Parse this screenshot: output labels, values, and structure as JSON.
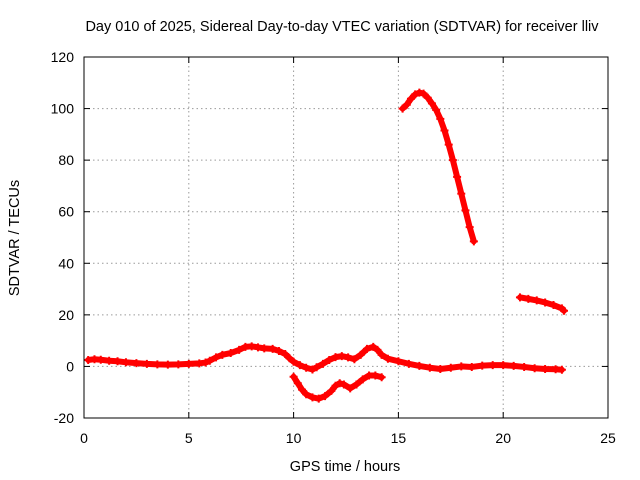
{
  "chart_data": {
    "type": "scatter",
    "title": "Day 010 of 2025, Sidereal Day-to-day VTEC variation (SDTVAR) for receiver lliv",
    "xlabel": "GPS time / hours",
    "ylabel": "SDTVAR / TECUs",
    "xlim": [
      0,
      25
    ],
    "ylim": [
      -20,
      120
    ],
    "x_ticks": [
      0,
      5,
      10,
      15,
      20,
      25
    ],
    "y_ticks": [
      -20,
      0,
      20,
      40,
      60,
      80,
      100,
      120
    ],
    "x_tick_labels": [
      "0",
      "5",
      "10",
      "15",
      "20",
      "25"
    ],
    "y_tick_labels": [
      "-20",
      "0",
      "20",
      "40",
      "60",
      "80",
      "100",
      "120"
    ],
    "grid": true,
    "legend": "none",
    "marker": "plus",
    "color": "#ff0000",
    "series": [
      {
        "points": [
          [
            0.2,
            2.5
          ],
          [
            0.5,
            2.8
          ],
          [
            0.8,
            2.6
          ],
          [
            1.2,
            2.2
          ],
          [
            1.6,
            2.0
          ],
          [
            2.0,
            1.6
          ],
          [
            2.5,
            1.3
          ],
          [
            3.0,
            1.0
          ],
          [
            3.5,
            0.8
          ],
          [
            4.0,
            0.7
          ],
          [
            4.5,
            0.8
          ],
          [
            5.0,
            1.0
          ],
          [
            5.5,
            1.2
          ],
          [
            5.8,
            1.5
          ],
          [
            6.0,
            2.2
          ],
          [
            6.3,
            3.5
          ],
          [
            6.6,
            4.5
          ],
          [
            7.0,
            5.2
          ],
          [
            7.4,
            6.4
          ],
          [
            7.7,
            7.6
          ],
          [
            8.0,
            7.8
          ],
          [
            8.3,
            7.4
          ],
          [
            8.6,
            7.0
          ],
          [
            9.0,
            6.8
          ],
          [
            9.3,
            6.0
          ],
          [
            9.6,
            4.8
          ],
          [
            9.8,
            3.2
          ],
          [
            10.0,
            1.8
          ],
          [
            10.3,
            0.5
          ],
          [
            10.6,
            -0.5
          ],
          [
            10.9,
            -1.2
          ],
          [
            11.1,
            -0.3
          ],
          [
            11.4,
            1.0
          ],
          [
            11.7,
            2.5
          ],
          [
            12.0,
            3.6
          ],
          [
            12.3,
            4.0
          ],
          [
            12.6,
            3.5
          ],
          [
            12.9,
            2.8
          ],
          [
            13.2,
            4.5
          ],
          [
            13.5,
            6.8
          ],
          [
            13.8,
            7.6
          ],
          [
            14.0,
            6.4
          ],
          [
            14.2,
            4.5
          ],
          [
            14.5,
            3.0
          ],
          [
            15.0,
            2.0
          ],
          [
            15.5,
            1.0
          ],
          [
            16.0,
            0.2
          ],
          [
            16.5,
            -0.5
          ],
          [
            17.0,
            -1.0
          ],
          [
            17.5,
            -0.5
          ],
          [
            18.0,
            0.0
          ],
          [
            18.5,
            -0.2
          ],
          [
            19.0,
            0.3
          ],
          [
            19.5,
            0.5
          ],
          [
            20.0,
            0.5
          ],
          [
            20.5,
            0.2
          ],
          [
            21.0,
            -0.2
          ],
          [
            21.5,
            -0.7
          ],
          [
            22.0,
            -1.0
          ],
          [
            22.5,
            -1.1
          ],
          [
            22.8,
            -1.3
          ]
        ]
      },
      {
        "points": [
          [
            10.0,
            -4.0
          ],
          [
            10.2,
            -6.5
          ],
          [
            10.4,
            -9.0
          ],
          [
            10.6,
            -10.8
          ],
          [
            10.9,
            -12.0
          ],
          [
            11.2,
            -12.5
          ],
          [
            11.5,
            -11.5
          ],
          [
            11.8,
            -9.5
          ],
          [
            12.0,
            -7.5
          ],
          [
            12.2,
            -6.5
          ],
          [
            12.4,
            -7.0
          ],
          [
            12.7,
            -8.5
          ],
          [
            13.0,
            -7.0
          ],
          [
            13.3,
            -5.0
          ],
          [
            13.6,
            -3.5
          ],
          [
            13.9,
            -3.5
          ],
          [
            14.2,
            -4.2
          ]
        ]
      },
      {
        "points": [
          [
            15.2,
            100.0
          ],
          [
            15.4,
            101.5
          ],
          [
            15.6,
            103.8
          ],
          [
            15.8,
            105.5
          ],
          [
            16.0,
            106.2
          ],
          [
            16.2,
            105.8
          ],
          [
            16.4,
            104.2
          ],
          [
            16.6,
            102.0
          ],
          [
            16.8,
            99.5
          ],
          [
            17.0,
            96.0
          ],
          [
            17.2,
            91.5
          ],
          [
            17.4,
            86.0
          ],
          [
            17.6,
            80.0
          ],
          [
            17.8,
            73.5
          ],
          [
            18.0,
            67.0
          ],
          [
            18.2,
            60.5
          ],
          [
            18.4,
            54.0
          ],
          [
            18.6,
            48.5
          ]
        ]
      },
      {
        "points": [
          [
            20.8,
            26.8
          ],
          [
            21.2,
            26.2
          ],
          [
            21.6,
            25.6
          ],
          [
            22.0,
            24.8
          ],
          [
            22.4,
            23.8
          ],
          [
            22.8,
            22.5
          ],
          [
            22.9,
            21.6
          ]
        ]
      }
    ]
  }
}
